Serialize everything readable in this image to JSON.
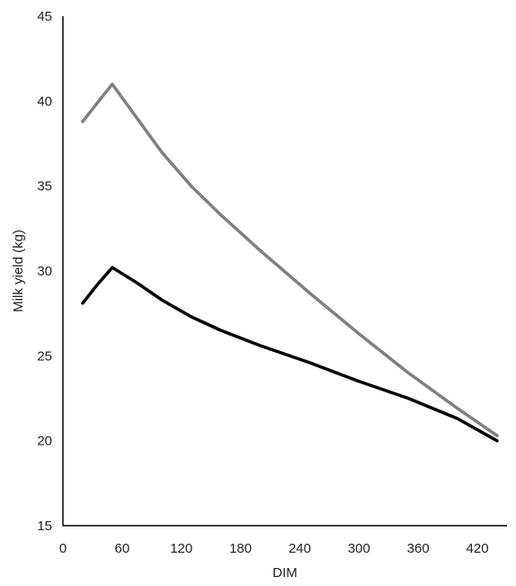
{
  "chart_data": {
    "type": "line",
    "title": "",
    "xlabel": "DIM",
    "ylabel": "Milk yield (kg)",
    "xlim": [
      0,
      450
    ],
    "ylim": [
      15,
      45
    ],
    "xticks": [
      0,
      60,
      120,
      180,
      240,
      300,
      360,
      420
    ],
    "yticks": [
      15,
      20,
      25,
      30,
      35,
      40,
      45
    ],
    "grid": false,
    "legend": "none",
    "series": [
      {
        "color": "#808080",
        "x": [
          20,
          35,
          50,
          75,
          100,
          130,
          160,
          200,
          250,
          300,
          350,
          400,
          440
        ],
        "y": [
          38.8,
          39.9,
          41.0,
          39.0,
          37.0,
          35.0,
          33.3,
          31.2,
          28.7,
          26.3,
          24.0,
          21.9,
          20.3
        ]
      },
      {
        "color": "#000000",
        "x": [
          20,
          35,
          50,
          75,
          100,
          130,
          160,
          200,
          250,
          300,
          350,
          400,
          440
        ],
        "y": [
          28.1,
          29.2,
          30.2,
          29.3,
          28.3,
          27.3,
          26.5,
          25.6,
          24.6,
          23.5,
          22.5,
          21.3,
          20.0
        ]
      }
    ]
  }
}
